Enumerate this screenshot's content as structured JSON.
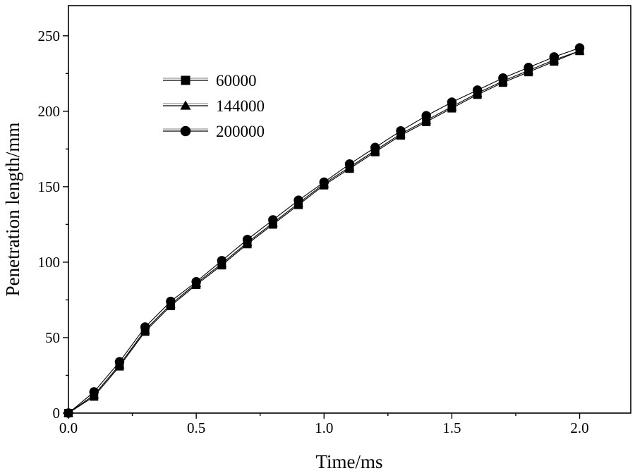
{
  "chart_data": {
    "type": "line",
    "title": "",
    "xlabel": "Time/ms",
    "ylabel": "Penetration length/mm",
    "xlim": [
      0,
      2.2
    ],
    "ylim": [
      0,
      270
    ],
    "x_ticks": [
      0.0,
      0.5,
      1.0,
      1.5,
      2.0
    ],
    "x_tick_labels": [
      "0.0",
      "0.5",
      "1.0",
      "1.5",
      "2.0"
    ],
    "y_ticks": [
      0,
      50,
      100,
      150,
      200,
      250
    ],
    "y_tick_labels": [
      "0",
      "50",
      "100",
      "150",
      "200",
      "250"
    ],
    "grid": false,
    "legend_position": "top-left",
    "x": [
      0.0,
      0.1,
      0.2,
      0.3,
      0.4,
      0.5,
      0.6,
      0.7,
      0.8,
      0.9,
      1.0,
      1.1,
      1.2,
      1.3,
      1.4,
      1.5,
      1.6,
      1.7,
      1.8,
      1.9,
      2.0
    ],
    "series": [
      {
        "name": "60000",
        "marker": "square",
        "values": [
          0,
          11,
          31,
          54,
          71,
          85,
          98,
          112,
          125,
          138,
          151,
          162,
          173,
          184,
          193,
          202,
          211,
          219,
          226,
          233,
          240
        ]
      },
      {
        "name": "144000",
        "marker": "triangle",
        "values": [
          0,
          12,
          32,
          55,
          72,
          86,
          99,
          113,
          126,
          139,
          152,
          163,
          174,
          185,
          194,
          203,
          212,
          220,
          227,
          234,
          240
        ]
      },
      {
        "name": "200000",
        "marker": "circle",
        "values": [
          0,
          14,
          34,
          57,
          74,
          87,
          101,
          115,
          128,
          141,
          153,
          165,
          176,
          187,
          197,
          206,
          214,
          222,
          229,
          236,
          242
        ]
      }
    ]
  }
}
